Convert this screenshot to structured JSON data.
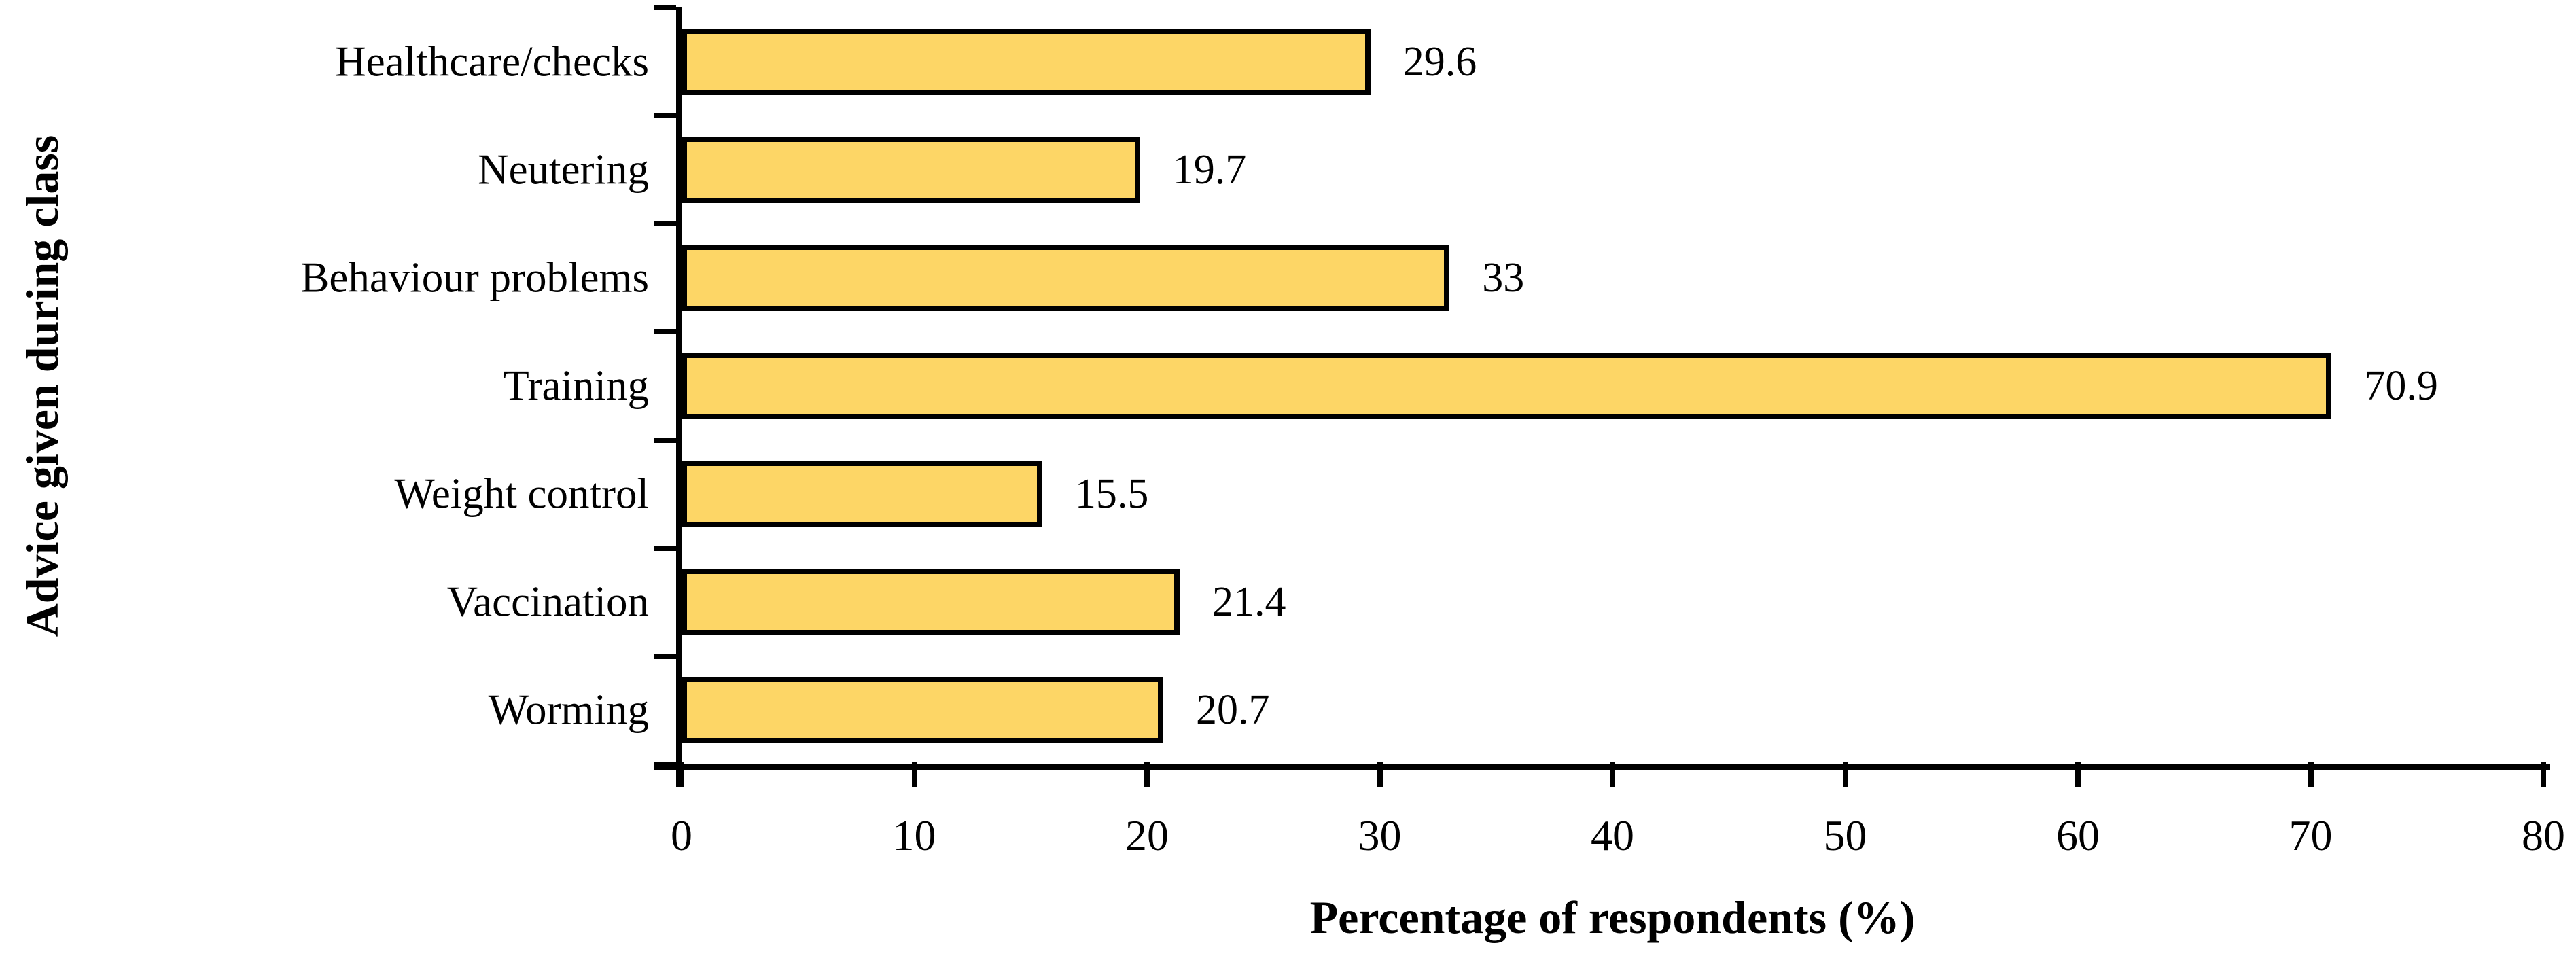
{
  "chart_data": {
    "type": "bar",
    "orientation": "horizontal",
    "title": "",
    "xlabel": "Percentage of respondents (%)",
    "ylabel": "Advice given during class",
    "categories": [
      "Healthcare/checks",
      "Neutering",
      "Behaviour problems",
      "Training",
      "Weight control",
      "Vaccination",
      "Worming"
    ],
    "values": [
      29.6,
      19.7,
      33,
      70.9,
      15.5,
      21.4,
      20.7
    ],
    "value_labels": [
      "29.6",
      "19.7",
      "33",
      "70.9",
      "15.5",
      "21.4",
      "20.7"
    ],
    "xlim": [
      0,
      80
    ],
    "x_ticks": [
      0,
      10,
      20,
      30,
      40,
      50,
      60,
      70,
      80
    ],
    "grid": false,
    "legend": false,
    "bar_fill_color": "#FDD666",
    "bar_border_color": "#000000",
    "axis_color": "#000000",
    "background_color": "#FFFFFF"
  }
}
